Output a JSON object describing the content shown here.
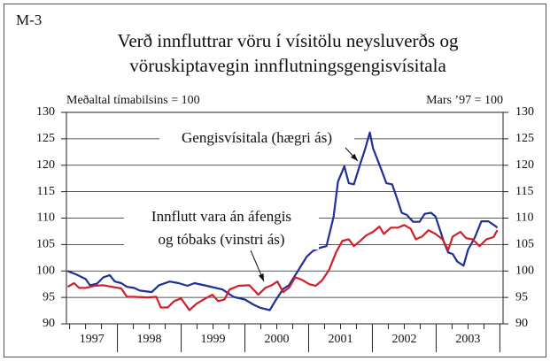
{
  "chart_data": {
    "type": "line",
    "label": "M-3",
    "title": [
      "Verð innfluttrar vöru í vísitölu neysluverðs og",
      "vöruskiptavegin innflutningsgengisvísitala"
    ],
    "left_axis_note": "Meðaltal tímabilsins = 100",
    "right_axis_note": "Mars ’97 = 100",
    "xlim": [
      1997.2,
      2004.05
    ],
    "xticks": [
      {
        "value": 1997.5,
        "label": "1997"
      },
      {
        "value": 1998.5,
        "label": "1998"
      },
      {
        "value": 1999.5,
        "label": "1999"
      },
      {
        "value": 2000.5,
        "label": "2000"
      },
      {
        "value": 2001.5,
        "label": "2001"
      },
      {
        "value": 2002.5,
        "label": "2002"
      },
      {
        "value": 2003.5,
        "label": "2003"
      }
    ],
    "ylim": [
      90,
      130
    ],
    "yticks": [
      90,
      95,
      100,
      105,
      110,
      115,
      120,
      125,
      130
    ],
    "y2lim": [
      90,
      130
    ],
    "y2ticks": [
      90,
      95,
      100,
      105,
      110,
      115,
      120,
      125,
      130
    ],
    "grid": true,
    "series": [
      {
        "name": [
          "Gengisvísitala (hægri ás)"
        ],
        "color": "#1f2f96",
        "axis": "y2",
        "x": [
          1997.22,
          1997.36,
          1997.5,
          1997.57,
          1997.68,
          1997.78,
          1997.88,
          1997.96,
          1998.06,
          1998.15,
          1998.26,
          1998.35,
          1998.54,
          1998.65,
          1998.82,
          1998.96,
          1999.1,
          1999.21,
          1999.4,
          1999.65,
          1999.82,
          2000.0,
          2000.14,
          2000.25,
          2000.39,
          2000.49,
          2000.6,
          2000.69,
          2000.83,
          2000.97,
          2001.07,
          2001.18,
          2001.28,
          2001.39,
          2001.46,
          2001.56,
          2001.63,
          2001.71,
          2001.81,
          2001.88,
          2001.96,
          2002.01,
          2002.13,
          2002.22,
          2002.31,
          2002.39,
          2002.46,
          2002.54,
          2002.64,
          2002.74,
          2002.82,
          2002.92,
          2002.99,
          2003.06,
          2003.13,
          2003.19,
          2003.26,
          2003.33,
          2003.43,
          2003.5,
          2003.61,
          2003.71,
          2003.82,
          2003.93,
          2003.96
        ],
        "values": [
          100.0,
          99.3,
          98.5,
          97.3,
          97.6,
          98.8,
          99.2,
          98.0,
          97.7,
          97.0,
          96.8,
          96.3,
          96.0,
          97.3,
          98.0,
          97.7,
          97.2,
          97.7,
          97.2,
          96.5,
          95.1,
          94.6,
          93.6,
          93.0,
          92.6,
          94.6,
          96.6,
          97.3,
          100.0,
          102.7,
          103.8,
          104.4,
          104.7,
          110.2,
          116.9,
          119.8,
          116.6,
          116.4,
          120.3,
          122.8,
          126.2,
          123.2,
          119.5,
          116.6,
          116.4,
          113.6,
          111.0,
          110.6,
          109.3,
          109.3,
          110.8,
          111.0,
          110.3,
          107.8,
          105.2,
          103.5,
          103.2,
          101.8,
          101.0,
          104.0,
          106.4,
          109.4,
          109.4,
          108.5,
          108.2
        ]
      },
      {
        "name": [
          "Innflutt vara án áfengis",
          "og tóbaks (vinstri ás)"
        ],
        "color": "#d0202a",
        "axis": "y",
        "x": [
          1997.22,
          1997.32,
          1997.4,
          1997.5,
          1997.64,
          1997.78,
          1997.92,
          1998.06,
          1998.15,
          1998.26,
          1998.47,
          1998.61,
          1998.68,
          1998.79,
          1998.89,
          1999.0,
          1999.13,
          1999.24,
          1999.38,
          1999.49,
          1999.58,
          1999.68,
          1999.76,
          1999.9,
          2000.07,
          2000.21,
          2000.32,
          2000.42,
          2000.51,
          2000.6,
          2000.69,
          2000.79,
          2000.9,
          2001.01,
          2001.11,
          2001.21,
          2001.32,
          2001.43,
          2001.53,
          2001.63,
          2001.71,
          2001.81,
          2001.9,
          2002.01,
          2002.11,
          2002.18,
          2002.29,
          2002.4,
          2002.5,
          2002.6,
          2002.68,
          2002.78,
          2002.88,
          2002.99,
          2003.1,
          2003.19,
          2003.26,
          2003.38,
          2003.47,
          2003.57,
          2003.68,
          2003.79,
          2003.9,
          2003.96
        ],
        "values": [
          97.0,
          97.7,
          96.8,
          96.8,
          97.2,
          97.3,
          97.0,
          96.7,
          95.1,
          95.1,
          95.0,
          95.1,
          93.1,
          93.1,
          94.3,
          94.8,
          92.6,
          93.8,
          94.8,
          95.5,
          94.3,
          94.6,
          96.5,
          97.2,
          97.3,
          95.5,
          96.8,
          97.3,
          98.0,
          96.0,
          96.8,
          98.8,
          98.3,
          97.5,
          97.2,
          98.2,
          100.2,
          103.5,
          105.7,
          106.0,
          104.7,
          105.7,
          106.7,
          107.4,
          108.4,
          107.0,
          108.2,
          108.2,
          108.7,
          108.0,
          106.0,
          106.5,
          107.7,
          107.0,
          106.0,
          104.0,
          106.5,
          107.4,
          106.2,
          106.0,
          104.7,
          106.0,
          106.4,
          107.7
        ]
      }
    ]
  }
}
